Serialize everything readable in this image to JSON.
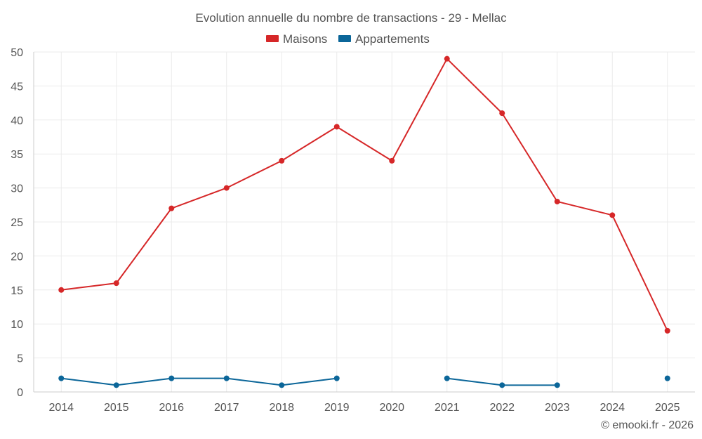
{
  "chart_data": {
    "type": "line",
    "title": "Evolution annuelle du nombre de transactions - 29 - Mellac",
    "categories": [
      "2014",
      "2015",
      "2016",
      "2017",
      "2018",
      "2019",
      "2020",
      "2021",
      "2022",
      "2023",
      "2024",
      "2025"
    ],
    "ylim": [
      0,
      50
    ],
    "yticks": [
      0,
      5,
      10,
      15,
      20,
      25,
      30,
      35,
      40,
      45,
      50
    ],
    "grid": true,
    "legend_position": "top-center",
    "series": [
      {
        "name": "Maisons",
        "color": "#d62728",
        "values": [
          15,
          16,
          27,
          30,
          34,
          39,
          34,
          49,
          41,
          28,
          26,
          9
        ]
      },
      {
        "name": "Appartements",
        "color": "#0b6699",
        "values": [
          2,
          1,
          2,
          2,
          1,
          2,
          null,
          2,
          1,
          1,
          null,
          2
        ]
      }
    ]
  },
  "footer": {
    "credit": "© emooki.fr - 2026"
  }
}
